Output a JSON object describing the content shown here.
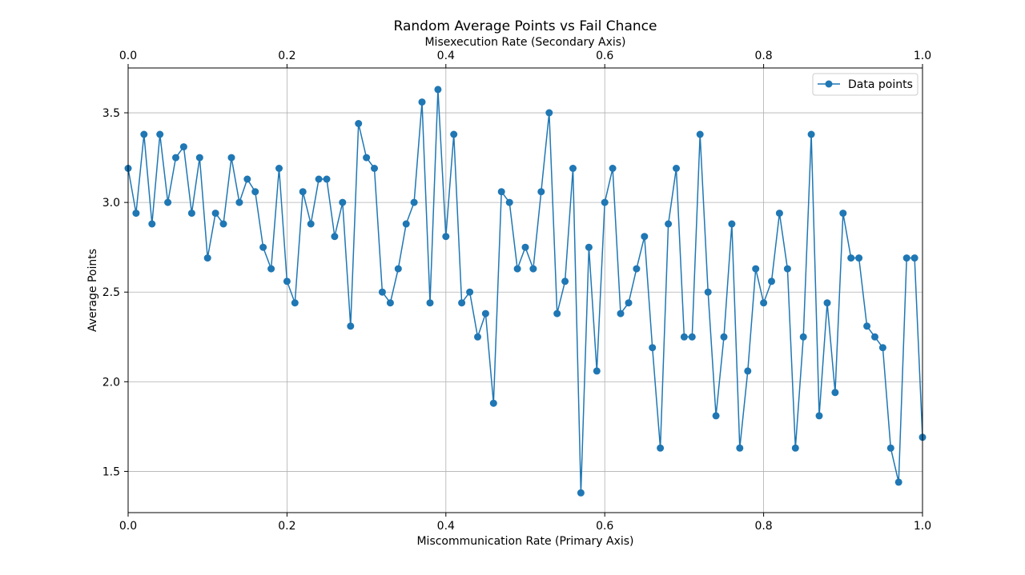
{
  "chart_data": {
    "type": "line",
    "title": "Random Average Points vs Fail Chance",
    "xlabel": "Miscommunication Rate (Primary Axis)",
    "x2label": "Misexecution Rate (Secondary Axis)",
    "ylabel": "Average Points",
    "xlim": [
      0,
      1
    ],
    "ylim": [
      1.27,
      3.75
    ],
    "x_ticks": [
      "0.0",
      "0.2",
      "0.4",
      "0.6",
      "0.8",
      "1.0"
    ],
    "x2_ticks": [
      "0.0",
      "0.2",
      "0.4",
      "0.6",
      "0.8",
      "1.0"
    ],
    "y_ticks": [
      "1.5",
      "2.0",
      "2.5",
      "3.0",
      "3.5"
    ],
    "grid": true,
    "legend_position": "top-right",
    "color": "#1f77b4",
    "marker": "circle",
    "series": [
      {
        "name": "Data points",
        "x": [
          0.0,
          0.01,
          0.02,
          0.03,
          0.04,
          0.05,
          0.06,
          0.07,
          0.08,
          0.09,
          0.1,
          0.11,
          0.12,
          0.13,
          0.14,
          0.15,
          0.16,
          0.17,
          0.18,
          0.19,
          0.2,
          0.21,
          0.22,
          0.23,
          0.24,
          0.25,
          0.26,
          0.27,
          0.28,
          0.29,
          0.3,
          0.31,
          0.32,
          0.33,
          0.34,
          0.35,
          0.36,
          0.37,
          0.38,
          0.39,
          0.4,
          0.41,
          0.42,
          0.43,
          0.44,
          0.45,
          0.46,
          0.47,
          0.48,
          0.49,
          0.5,
          0.51,
          0.52,
          0.53,
          0.54,
          0.55,
          0.56,
          0.57,
          0.58,
          0.59,
          0.6,
          0.61,
          0.62,
          0.63,
          0.64,
          0.65,
          0.66,
          0.67,
          0.68,
          0.69,
          0.7,
          0.71,
          0.72,
          0.73,
          0.74,
          0.75,
          0.76,
          0.77,
          0.78,
          0.79,
          0.8,
          0.81,
          0.82,
          0.83,
          0.84,
          0.85,
          0.86,
          0.87,
          0.88,
          0.89,
          0.9,
          0.91,
          0.92,
          0.93,
          0.94,
          0.95,
          0.96,
          0.97,
          0.98,
          0.99,
          1.0
        ],
        "y": [
          3.19,
          2.94,
          3.38,
          2.88,
          3.38,
          3.0,
          3.25,
          3.31,
          2.94,
          3.25,
          2.69,
          2.94,
          2.88,
          3.25,
          3.0,
          3.13,
          3.06,
          2.75,
          2.63,
          3.19,
          2.56,
          2.44,
          3.06,
          2.88,
          3.13,
          3.13,
          2.81,
          3.0,
          2.31,
          3.44,
          3.25,
          3.19,
          2.5,
          2.44,
          2.63,
          2.88,
          3.0,
          3.56,
          2.44,
          3.63,
          2.81,
          3.38,
          2.44,
          2.5,
          2.25,
          2.38,
          1.88,
          3.06,
          3.0,
          2.63,
          2.75,
          2.63,
          3.06,
          3.5,
          2.38,
          2.56,
          3.19,
          1.38,
          2.75,
          2.06,
          3.0,
          3.19,
          2.38,
          2.44,
          2.63,
          2.81,
          2.19,
          1.63,
          2.88,
          3.19,
          2.25,
          2.25,
          3.38,
          2.5,
          1.81,
          2.25,
          2.88,
          1.63,
          2.06,
          2.63,
          2.44,
          2.56,
          2.94,
          2.63,
          1.63,
          2.25,
          3.38,
          1.81,
          2.44,
          1.94,
          2.94,
          2.69,
          2.69,
          2.31,
          2.25,
          2.19,
          1.63,
          1.44,
          2.69,
          2.69,
          1.69
        ]
      }
    ]
  }
}
